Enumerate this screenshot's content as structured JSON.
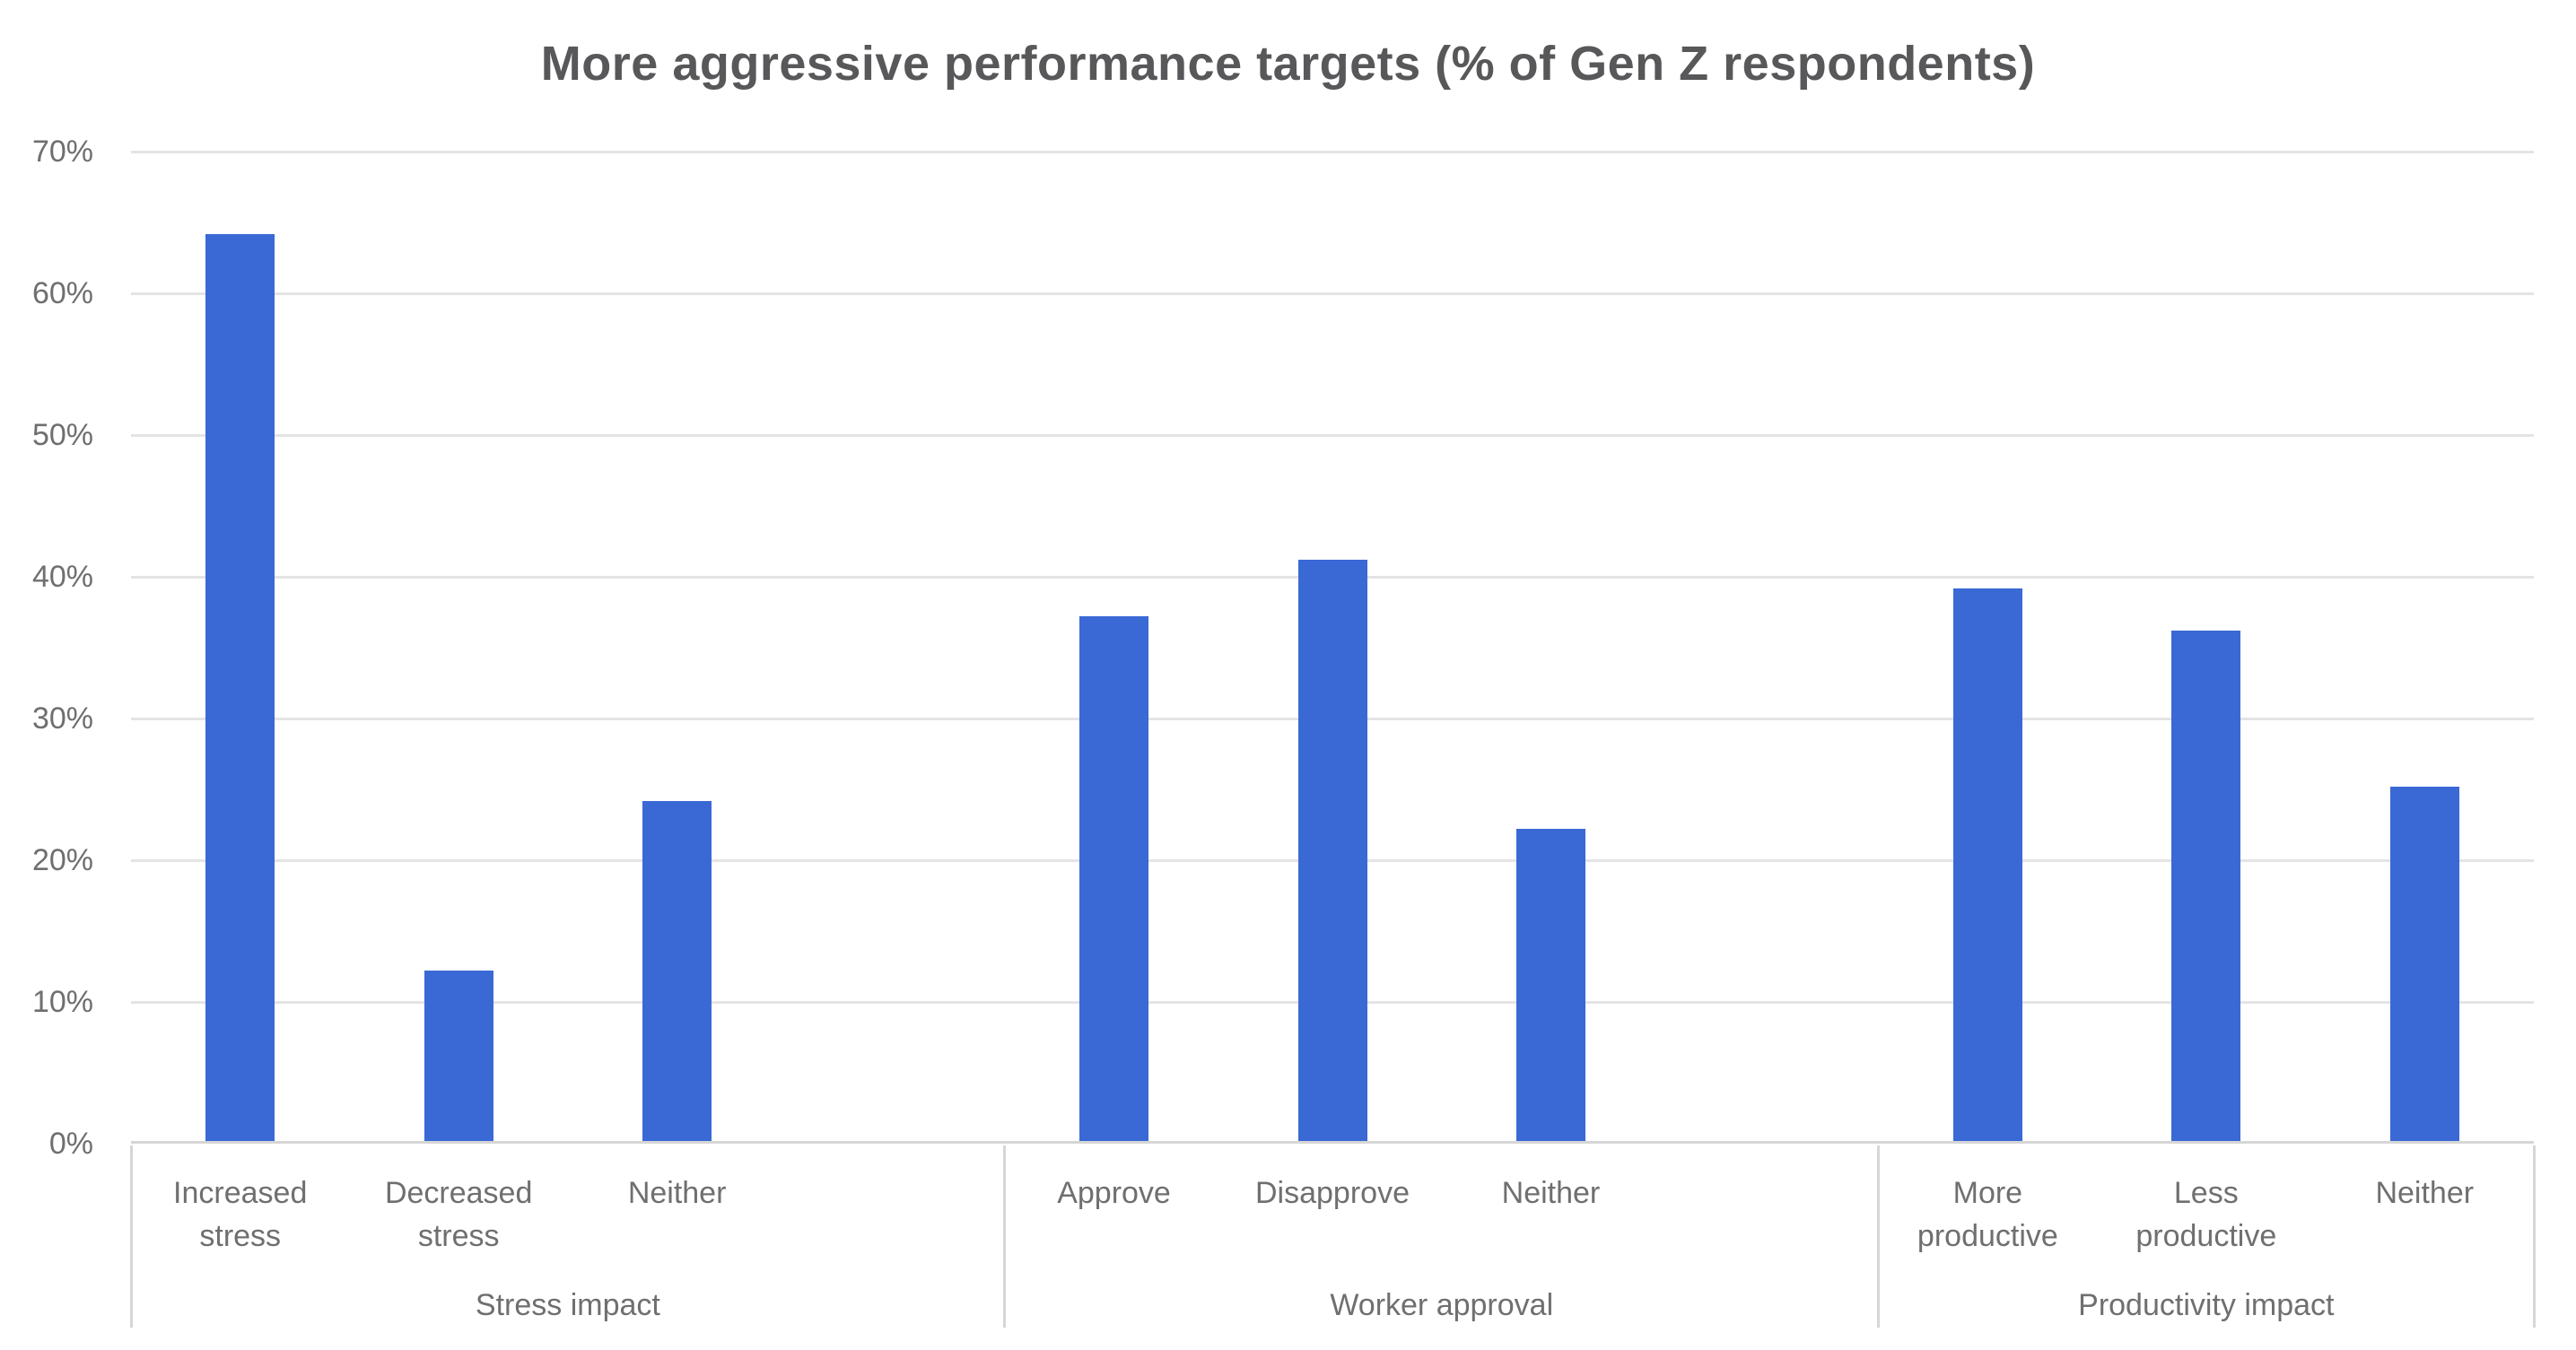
{
  "chart_data": {
    "type": "bar",
    "title": "More aggressive performance targets (% of Gen Z respondents)",
    "xlabel": "",
    "ylabel": "",
    "ylim": [
      0,
      70
    ],
    "y_ticks": [
      "0%",
      "10%",
      "20%",
      "30%",
      "40%",
      "50%",
      "60%",
      "70%"
    ],
    "grid": true,
    "legend": "none",
    "groups": [
      {
        "label": "Stress impact",
        "categories": [
          "Increased stress",
          "Decreased stress",
          "Neither"
        ],
        "values": [
          64,
          12,
          24
        ]
      },
      {
        "label": "Worker approval",
        "categories": [
          "Approve",
          "Disapprove",
          "Neither"
        ],
        "values": [
          37,
          41,
          22
        ]
      },
      {
        "label": "Productivity impact",
        "categories": [
          "More productive",
          "Less productive",
          "Neither"
        ],
        "values": [
          39,
          36,
          25
        ]
      }
    ],
    "colors": {
      "bar": "#3a69d5",
      "gridline": "#e4e4e4",
      "axis_line": "#d6d6d6",
      "label": "#6f6f6f",
      "title": "#58585a"
    }
  }
}
